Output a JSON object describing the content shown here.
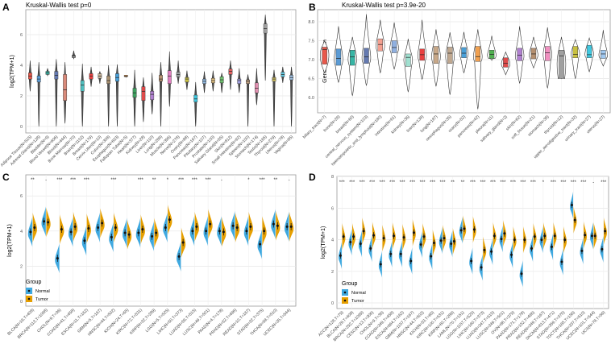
{
  "chart_data": [
    {
      "panel": "A",
      "type": "violin-box",
      "title": "Kruskal-Wallis test p=0",
      "ylabel": "log2(TPM+1)",
      "xlabel": "",
      "ylim": [
        0,
        7.5
      ],
      "yticks": [
        0,
        2,
        4,
        6
      ],
      "grid": true,
      "stat_order": [
        "min",
        "q1",
        "median",
        "q3",
        "max"
      ],
      "categories": [
        "Adipose Tissue(N=515)",
        "Adrenal Gland(N=128)",
        "Bladder(N=9)",
        "Blood Vessel(N=606)",
        "Blood(N=444)",
        "Bone Marrow(N=70)",
        "Brain(N=1152)",
        "Breast(N=179)",
        "Cervix Uteri(N=10)",
        "Colon(N=308)",
        "Esophagus(N=653)",
        "Fallopian Tube(N=5)",
        "Heart(N=377)",
        "Kidney(N=28)",
        "Liver(N=110)",
        "Lung(N=288)",
        "Muscle(N=396)",
        "Nerve(N=278)",
        "Ovary(N=88)",
        "Pancreas(N=167)",
        "Pituitary(N=107)",
        "Prostate(N=100)",
        "Salivary Gland(N=55)",
        "Skin(N=812)",
        "Small Intestine(N=92)",
        "Spleen(N=100)",
        "Stomach(N=174)",
        "Testis(N=165)",
        "Thyroid(N=279)",
        "Uterus(N=78)",
        "Vagina(N=85)"
      ],
      "values": [
        [
          2.3,
          3.1,
          3.3,
          3.5,
          4.3
        ],
        [
          0,
          2.9,
          3.1,
          3.3,
          4.2
        ],
        [
          3.3,
          3.4,
          3.5,
          3.6,
          3.8
        ],
        [
          0,
          3.1,
          3.35,
          3.6,
          4.4
        ],
        [
          0.2,
          1.7,
          2.4,
          3.4,
          4.2
        ],
        [
          4.4,
          4.5,
          4.6,
          4.65,
          4.95
        ],
        [
          0,
          2.3,
          2.7,
          3.0,
          4.1
        ],
        [
          2.6,
          3.1,
          3.3,
          3.45,
          3.9
        ],
        [
          2.8,
          3.15,
          3.3,
          3.45,
          3.6
        ],
        [
          0,
          2.8,
          3.0,
          3.3,
          4.0
        ],
        [
          0,
          2.95,
          3.2,
          3.45,
          4.05
        ],
        [
          3.2,
          3.25,
          3.3,
          3.35,
          3.35
        ],
        [
          0,
          1.9,
          2.2,
          2.5,
          3.7
        ],
        [
          0.3,
          1.7,
          2.3,
          2.6,
          3.2
        ],
        [
          0.8,
          1.75,
          2.1,
          2.3,
          3.5
        ],
        [
          0,
          2.95,
          3.1,
          3.35,
          4.2
        ],
        [
          1.3,
          2.8,
          3.3,
          3.65,
          4.9
        ],
        [
          2.8,
          3.25,
          3.4,
          3.55,
          4.3
        ],
        [
          2.4,
          2.9,
          3.1,
          3.2,
          3.65
        ],
        [
          0,
          1.6,
          1.8,
          2.05,
          2.9
        ],
        [
          2.2,
          2.8,
          2.95,
          3.1,
          3.6
        ],
        [
          2.3,
          2.85,
          3.0,
          3.15,
          3.65
        ],
        [
          2.2,
          2.85,
          3.05,
          3.25,
          3.5
        ],
        [
          2.4,
          3.4,
          3.6,
          3.75,
          4.3
        ],
        [
          2.2,
          2.8,
          3.0,
          3.1,
          3.8
        ],
        [
          0,
          2.8,
          2.95,
          3.05,
          3.4
        ],
        [
          1.4,
          2.2,
          2.5,
          2.85,
          3.8
        ],
        [
          3.0,
          6.1,
          6.4,
          6.7,
          7.3
        ],
        [
          0,
          2.95,
          3.1,
          3.2,
          3.7
        ],
        [
          2.85,
          3.25,
          3.4,
          3.55,
          3.9
        ],
        [
          0,
          3.05,
          3.2,
          3.35,
          3.9
        ]
      ],
      "colors": [
        "#e8584a",
        "#5b9bd5",
        "#37b5a5",
        "#6479b0",
        "#d98a7a",
        "#9e9e9e",
        "#4fbfbf",
        "#e84040",
        "#c8b49a",
        "#a89070",
        "#4aa0d8",
        "#f0a050",
        "#3fa060",
        "#e04a4a",
        "#b080d0",
        "#b59070",
        "#e080c0",
        "#9aa0a0",
        "#c8c040",
        "#40c8e0",
        "#90b8e0",
        "#e0c080",
        "#70c070",
        "#e06060",
        "#a0a0e0",
        "#c0a080",
        "#e090b0",
        "#a0a0a0",
        "#d0c060",
        "#60c8e0",
        "#a0c0e0"
      ]
    },
    {
      "panel": "B",
      "type": "violin-box",
      "title": "Kruskal-Wallis test p=3.9e-20",
      "ylabel": "Gene Expression",
      "xlabel": "",
      "ylim": [
        5.6,
        8.3
      ],
      "yticks": [
        6.0,
        6.5,
        7.0,
        7.5,
        8.0
      ],
      "grid": true,
      "stat_order": [
        "min",
        "q1",
        "median",
        "q3",
        "max"
      ],
      "categories": [
        "biliary_tract(N=7)",
        "bone(N=29)",
        "breast(N=60)",
        "central_nervous_system(N=103)",
        "haematopoietic_and_lymphoid(N=180)",
        "intestine(N=61)",
        "kidney(N=36)",
        "liver(N=138)",
        "lung(N=187)",
        "oesophagus(N=35)",
        "ovary(N=52)",
        "pancreas(N=42)",
        "pleura(N=11)",
        "salivary_gland(N=2)",
        "skin(N=62)",
        "soft_tissue(N=21)",
        "stomach(N=38)",
        "thyroid(N=12)",
        "upper_aerodigestive_tract(N=32)",
        "urinary_tract(N=27)",
        "uterus(N=27)"
      ],
      "values": [
        [
          6.65,
          6.88,
          7.27,
          7.33,
          7.5
        ],
        [
          6.4,
          6.85,
          7.03,
          7.28,
          7.88
        ],
        [
          6.05,
          6.85,
          7.07,
          7.25,
          7.6
        ],
        [
          6.32,
          6.9,
          7.07,
          7.3,
          8.2
        ],
        [
          6.65,
          7.23,
          7.4,
          7.55,
          8.05
        ],
        [
          6.75,
          7.18,
          7.32,
          7.5,
          7.98
        ],
        [
          6.15,
          6.82,
          7.06,
          7.15,
          7.55
        ],
        [
          6.48,
          6.98,
          7.13,
          7.28,
          8.05
        ],
        [
          6.3,
          6.9,
          7.15,
          7.35,
          7.8
        ],
        [
          6.08,
          6.9,
          7.17,
          7.33,
          7.72
        ],
        [
          6.65,
          7.05,
          7.17,
          7.32,
          7.73
        ],
        [
          5.7,
          6.95,
          7.08,
          7.35,
          7.8
        ],
        [
          6.98,
          7.03,
          7.14,
          7.25,
          7.63
        ],
        [
          6.6,
          6.8,
          6.9,
          7.05,
          7.2
        ],
        [
          6.38,
          6.97,
          7.12,
          7.3,
          7.88
        ],
        [
          6.78,
          7.02,
          7.15,
          7.3,
          7.6
        ],
        [
          6.25,
          6.97,
          7.18,
          7.35,
          7.85
        ],
        [
          6.5,
          6.5,
          7.1,
          7.25,
          7.6
        ],
        [
          6.5,
          7.05,
          7.14,
          7.35,
          7.53
        ],
        [
          6.68,
          7.05,
          7.13,
          7.38,
          7.57
        ],
        [
          6.83,
          7.03,
          7.15,
          7.25,
          7.78
        ]
      ],
      "colors": [
        "#e8584a",
        "#5b9bd5",
        "#37b5a5",
        "#6479b0",
        "#f4a090",
        "#90b0e0",
        "#a0e0d0",
        "#e84040",
        "#c8a888",
        "#c0a890",
        "#4aa0d8",
        "#f0a050",
        "#50b050",
        "#e04a4a",
        "#b080d0",
        "#b59070",
        "#f090c0",
        "#a0a0a0",
        "#c8c040",
        "#40c8e0",
        "#a0c8f0"
      ]
    },
    {
      "panel": "C",
      "type": "split-violin",
      "ylabel": "log2(TPM+1)",
      "xlabel": "",
      "ylim": [
        -0.2,
        7
      ],
      "yticks": [
        0,
        2,
        4,
        6
      ],
      "grid": true,
      "legend": {
        "title": "Group",
        "entries": [
          "Normal",
          "Tumor"
        ],
        "placement": "bottom-left"
      },
      "colors": {
        "Normal": "#3fa9e0",
        "Tumor": "#e69f00"
      },
      "categories": [
        "BLCA(N=19,T=408)",
        "BRCA(N=113,T=1098)",
        "CHOL(N=9,T=36)",
        "COAD(N=41,T=458)",
        "ESCA(N=11,T=162)",
        "GBM(N=5,T=167)",
        "HNSC(N=44,T=502)",
        "KICH(N=24,T=65)",
        "KIRC(N=72,T=531)",
        "KIRP(N=32,T=289)",
        "LGG(N=5,T=525)",
        "LIHC(N=50,T=373)",
        "LUAD(N=59,T=515)",
        "LUSC(N=49,T=501)",
        "PAAD(N=4,T=178)",
        "PRAD(N=52,T=496)",
        "READ(N=10,T=167)",
        "STAD(N=32,T=375)",
        "THCA(N=58,T=510)",
        "UCEC(N=35,T=544)"
      ],
      "series": [
        {
          "name": "Normal",
          "values": [
            3.95,
            4.55,
            2.45,
            3.95,
            3.45,
            4.2,
            3.65,
            3.9,
            3.9,
            3.7,
            4.2,
            2.55,
            4.0,
            4.0,
            4.0,
            4.3,
            4.0,
            3.25,
            4.4,
            4.25
          ]
        },
        {
          "name": "Tumor",
          "values": [
            4.2,
            4.5,
            4.1,
            4.25,
            4.15,
            4.45,
            4.2,
            3.8,
            4.1,
            3.9,
            4.65,
            3.35,
            4.25,
            4.4,
            3.95,
            4.2,
            4.25,
            4.0,
            4.3,
            4.25
          ]
        }
      ],
      "significance": [
        "**",
        "-",
        "***",
        "***",
        "***",
        "",
        "***",
        "",
        "***",
        "**",
        "*",
        "***",
        "***",
        "***",
        "-",
        "",
        "*",
        "***",
        "**",
        "-"
      ]
    },
    {
      "panel": "D",
      "type": "split-violin",
      "ylabel": "log2(TPM+1)",
      "xlabel": "",
      "ylim": [
        -0.3,
        8
      ],
      "yticks": [
        0,
        2,
        4,
        6,
        8
      ],
      "grid": true,
      "legend": {
        "title": "Group",
        "entries": [
          "Normal",
          "Tumor"
        ],
        "placement": "bottom-left"
      },
      "colors": {
        "Normal": "#3fa9e0",
        "Tumor": "#e69f00"
      },
      "categories": [
        "ACC(N=128,T=79)",
        "BLCA(N=28,T=408)",
        "BRCA(N=292,T=1099)",
        "CESC(N=13,T=306)",
        "CHOL(N=9,T=36)",
        "COAD(N=349,T=458)",
        "ESCA(N=664,T=162)",
        "GBM(N=1157,T=167)",
        "HNSC(N=44,T=502)",
        "KICH(N=53,T=65)",
        "KIRC(N=100,T=531)",
        "KIRP(N=60,T=289)",
        "LAML(N=70,T=151)",
        "LGG(N=1157,T=525)",
        "LIHC(N=160,T=373)",
        "LUAD(N=347,T=515)",
        "LUSC(N=349,T=501)",
        "OV(N=88,T=379)",
        "PAAD(N=171,T=178)",
        "PRAD(N=152,T=496)",
        "READ(N=349,T=167)",
        "SKCM(N=813,T=471)",
        "STAD(N=359,T=375)",
        "TGCT(N=165,T=156)",
        "THCA(N=337,T=510)",
        "UCEC(N=101,T=544)",
        "UCS(N=78,T=56)"
      ],
      "series": [
        {
          "name": "Normal",
          "values": [
            3.0,
            3.85,
            3.75,
            3.45,
            2.45,
            3.1,
            3.1,
            2.65,
            3.7,
            2.95,
            3.95,
            3.75,
            4.6,
            2.65,
            2.25,
            3.25,
            4.05,
            3.05,
            1.85,
            3.45,
            4.0,
            3.55,
            2.6,
            6.2,
            3.3,
            4.25,
            3.4
          ]
        },
        {
          "name": "Tumor",
          "values": [
            4.2,
            4.2,
            4.55,
            4.28,
            4.1,
            4.25,
            4.15,
            4.45,
            4.2,
            3.8,
            4.1,
            3.9,
            4.7,
            4.65,
            3.35,
            4.25,
            4.4,
            4.0,
            4.0,
            4.2,
            4.25,
            4.25,
            4.0,
            5.25,
            4.3,
            4.25,
            4.55
          ]
        }
      ],
      "significance": [
        "***",
        "***",
        "***",
        "***",
        "***",
        "***",
        "***",
        "***",
        "***",
        "***",
        "***",
        "**",
        "**",
        "***",
        "***",
        "***",
        "***",
        "***",
        "***",
        "***",
        "*",
        "***",
        "***",
        "***",
        "***",
        "-",
        "***"
      ]
    }
  ],
  "panel_letters": [
    "A",
    "B",
    "C",
    "D"
  ]
}
